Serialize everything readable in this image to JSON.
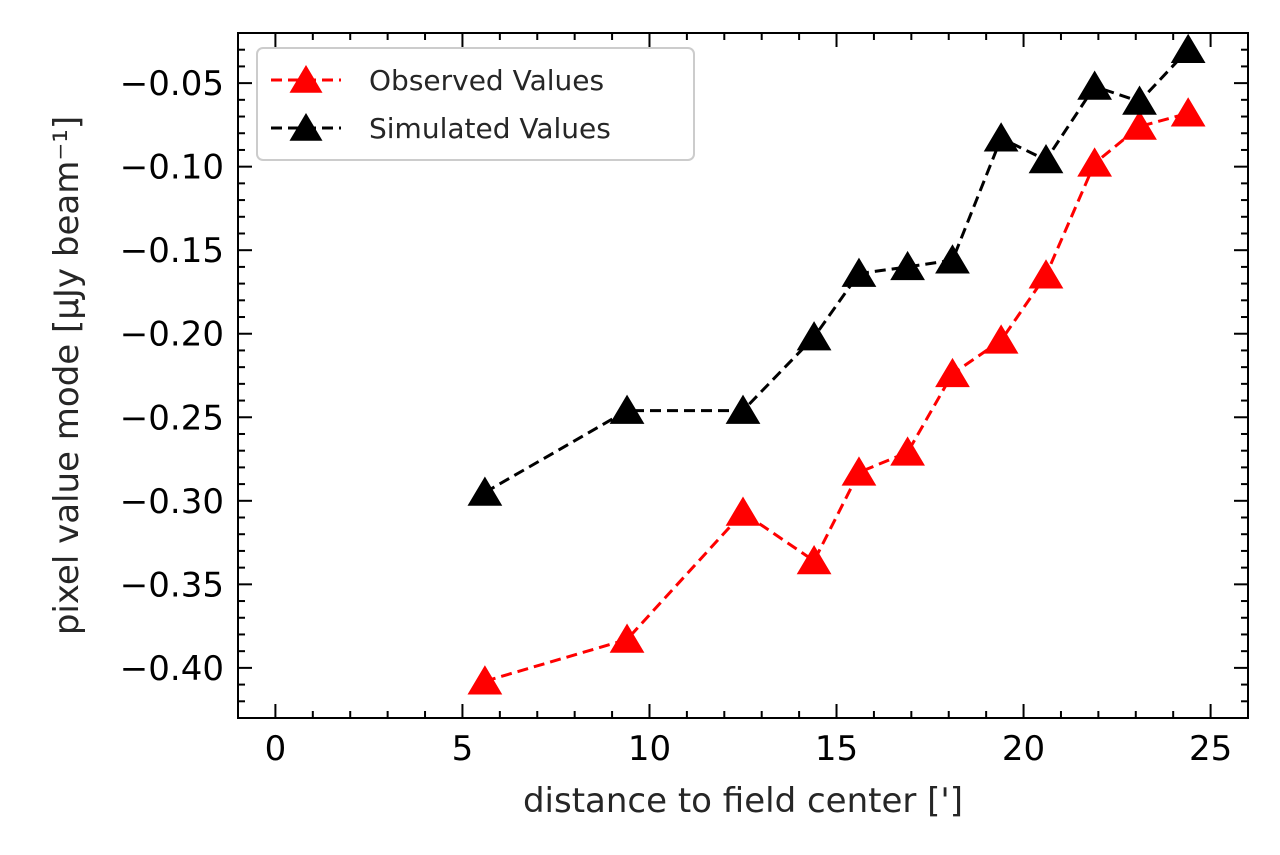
{
  "chart_data": {
    "type": "line",
    "title": "",
    "xlabel": "distance to field center [']",
    "ylabel": "pixel value mode [μJy beam⁻¹]",
    "xlim": [
      -1,
      26
    ],
    "ylim": [
      -0.43,
      -0.02
    ],
    "xticks": [
      0,
      5,
      10,
      15,
      20,
      25
    ],
    "xtick_labels": [
      "0",
      "5",
      "10",
      "15",
      "20",
      "25"
    ],
    "yticks": [
      -0.4,
      -0.35,
      -0.3,
      -0.25,
      -0.2,
      -0.15,
      -0.1,
      -0.05
    ],
    "ytick_labels": [
      "−0.40",
      "−0.35",
      "−0.30",
      "−0.25",
      "−0.20",
      "−0.15",
      "−0.10",
      "−0.05"
    ],
    "grid": false,
    "legend_position": "top-left",
    "series": [
      {
        "name": "Observed Values",
        "color": "#ff0000",
        "marker": "triangle",
        "linestyle": "dashed",
        "x": [
          5.6,
          9.4,
          12.5,
          14.4,
          15.6,
          16.9,
          18.1,
          19.4,
          20.6,
          21.9,
          23.1,
          24.4
        ],
        "y": [
          -0.408,
          -0.383,
          -0.307,
          -0.336,
          -0.283,
          -0.271,
          -0.224,
          -0.204,
          -0.165,
          -0.098,
          -0.076,
          -0.068
        ]
      },
      {
        "name": "Simulated Values",
        "color": "#000000",
        "marker": "triangle",
        "linestyle": "dashed",
        "x": [
          5.6,
          9.4,
          12.5,
          14.4,
          15.6,
          16.9,
          18.1,
          19.4,
          20.6,
          21.9,
          23.1,
          24.4
        ],
        "y": [
          -0.295,
          -0.246,
          -0.246,
          -0.202,
          -0.164,
          -0.16,
          -0.156,
          -0.083,
          -0.096,
          -0.052,
          -0.061,
          -0.03
        ]
      }
    ]
  }
}
